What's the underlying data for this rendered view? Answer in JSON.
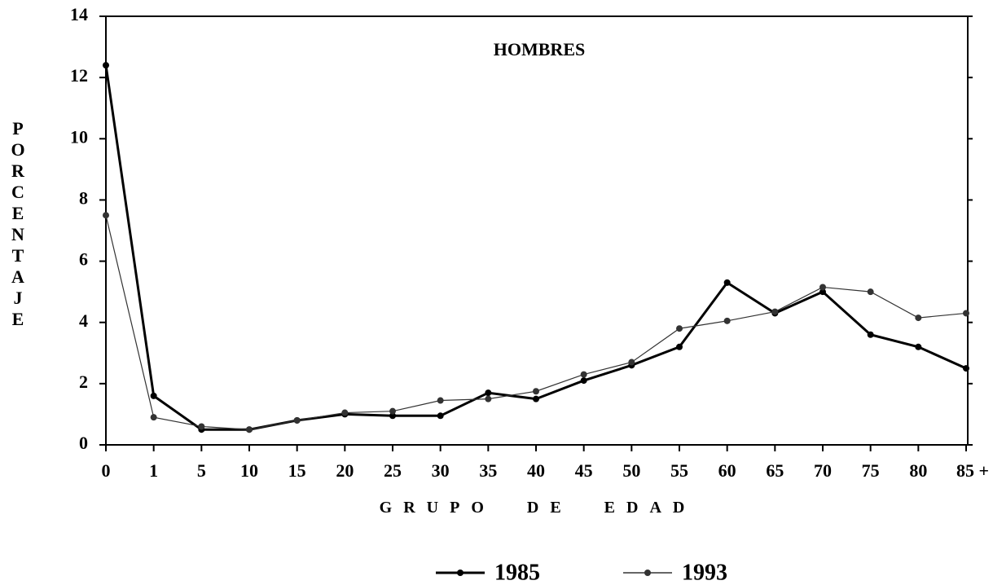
{
  "chart_data": {
    "type": "line",
    "title": "HOMBRES",
    "x_label": "GRUPO DE EDAD",
    "y_label": "PORCENTAJE",
    "categories": [
      "0",
      "1",
      "5",
      "10",
      "15",
      "20",
      "25",
      "30",
      "35",
      "40",
      "45",
      "50",
      "55",
      "60",
      "65",
      "70",
      "75",
      "80",
      "85 +"
    ],
    "series": [
      {
        "name": "1985",
        "color": "#000000",
        "values": [
          12.4,
          1.6,
          0.5,
          0.5,
          0.8,
          1.0,
          0.95,
          0.95,
          1.7,
          1.5,
          2.1,
          2.6,
          3.2,
          5.3,
          4.3,
          5.0,
          3.6,
          3.2,
          2.5
        ]
      },
      {
        "name": "1993",
        "color": "#333333",
        "values": [
          7.5,
          0.9,
          0.6,
          0.5,
          0.8,
          1.05,
          1.1,
          1.45,
          1.5,
          1.75,
          2.3,
          2.7,
          3.8,
          4.05,
          4.35,
          5.15,
          5.0,
          4.15,
          4.3
        ]
      }
    ],
    "ylim": [
      0,
      14
    ],
    "yticks": [
      0,
      2,
      4,
      6,
      8,
      10,
      12,
      14
    ],
    "grid": false,
    "legend": "bottom"
  }
}
